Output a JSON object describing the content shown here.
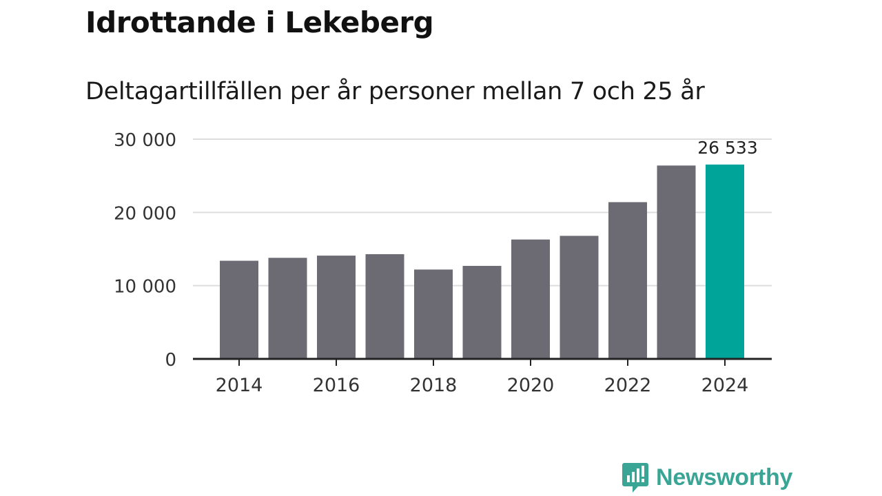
{
  "colors": {
    "bar": "#6c6b74",
    "highlight": "#00a499",
    "brand": "#3aa595",
    "grid": "#dddddd",
    "axis": "#222222",
    "text": "#333333"
  },
  "chart_data": {
    "type": "bar",
    "title": "Idrottande i Lekeberg",
    "subtitle": "Deltagartillfällen per år personer mellan 7 och 25 år",
    "xlabel": "",
    "ylabel": "",
    "categories": [
      "2014",
      "2015",
      "2016",
      "2017",
      "2018",
      "2019",
      "2020",
      "2021",
      "2022",
      "2023",
      "2024"
    ],
    "values": [
      13400,
      13800,
      14100,
      14300,
      12200,
      12700,
      16300,
      16800,
      21400,
      26400,
      26533
    ],
    "highlight_index": 10,
    "value_labels": [
      {
        "index": 10,
        "text": "26 533"
      }
    ],
    "x_tick_labels": [
      "2014",
      "2016",
      "2018",
      "2020",
      "2022",
      "2024"
    ],
    "y_ticks": [
      {
        "value": 0,
        "label": "0"
      },
      {
        "value": 10000,
        "label": "10 000"
      },
      {
        "value": 20000,
        "label": "20 000"
      },
      {
        "value": 30000,
        "label": "30 000"
      }
    ],
    "ylim": [
      0,
      30000
    ],
    "grid": true
  },
  "branding": {
    "name": "Newsworthy",
    "logo_icon": "newsworthy-logo-icon"
  }
}
